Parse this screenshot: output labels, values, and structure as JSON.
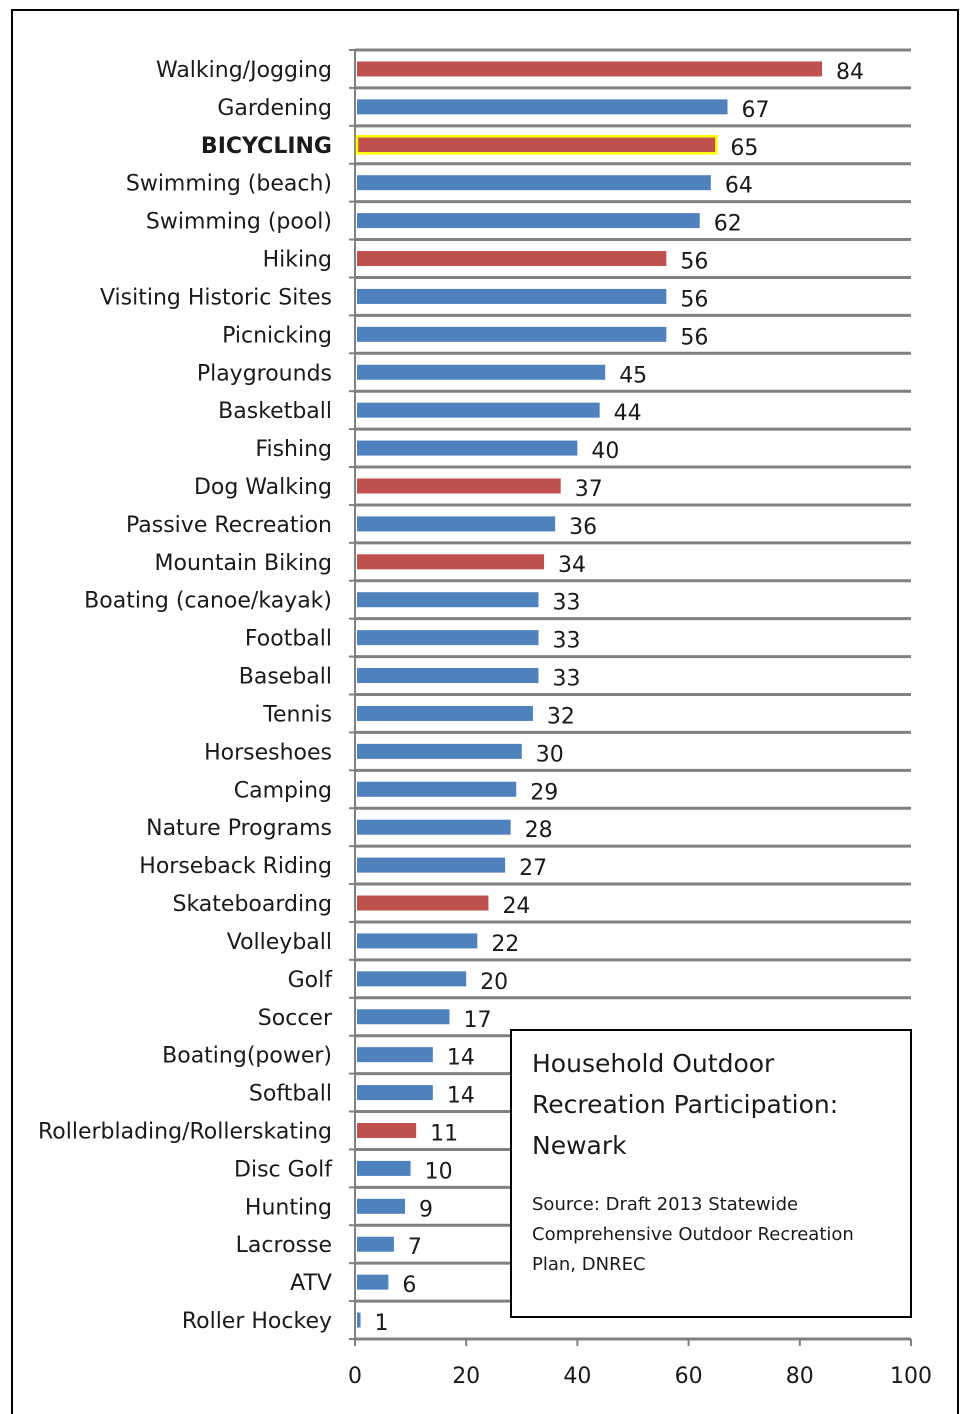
{
  "chart_data": {
    "type": "bar",
    "orientation": "horizontal",
    "title": "Household Outdoor Recreation Participation: Newark",
    "source": "Source: Draft 2013 Statewide Comprehensive Outdoor Recreation Plan, DNREC",
    "xlim": [
      0,
      100
    ],
    "xticks": [
      0,
      20,
      40,
      60,
      80,
      100
    ],
    "grid": "horizontal",
    "colors": {
      "blue": "#4f81bd",
      "red": "#c0504d",
      "highlight": "#ffff00",
      "grid": "#808080"
    },
    "categories": [
      {
        "label": "Walking/Jogging",
        "value": 84,
        "color": "red"
      },
      {
        "label": "Gardening",
        "value": 67,
        "color": "blue"
      },
      {
        "label": "BICYCLING",
        "value": 65,
        "color": "red",
        "highlight": true,
        "bold": true
      },
      {
        "label": "Swimming (beach)",
        "value": 64,
        "color": "blue"
      },
      {
        "label": "Swimming (pool)",
        "value": 62,
        "color": "blue"
      },
      {
        "label": "Hiking",
        "value": 56,
        "color": "red"
      },
      {
        "label": "Visiting Historic Sites",
        "value": 56,
        "color": "blue"
      },
      {
        "label": "Picnicking",
        "value": 56,
        "color": "blue"
      },
      {
        "label": "Playgrounds",
        "value": 45,
        "color": "blue"
      },
      {
        "label": "Basketball",
        "value": 44,
        "color": "blue"
      },
      {
        "label": "Fishing",
        "value": 40,
        "color": "blue"
      },
      {
        "label": "Dog Walking",
        "value": 37,
        "color": "red"
      },
      {
        "label": "Passive Recreation",
        "value": 36,
        "color": "blue"
      },
      {
        "label": "Mountain Biking",
        "value": 34,
        "color": "red"
      },
      {
        "label": "Boating (canoe/kayak)",
        "value": 33,
        "color": "blue"
      },
      {
        "label": "Football",
        "value": 33,
        "color": "blue"
      },
      {
        "label": "Baseball",
        "value": 33,
        "color": "blue"
      },
      {
        "label": "Tennis",
        "value": 32,
        "color": "blue"
      },
      {
        "label": "Horseshoes",
        "value": 30,
        "color": "blue"
      },
      {
        "label": "Camping",
        "value": 29,
        "color": "blue"
      },
      {
        "label": "Nature Programs",
        "value": 28,
        "color": "blue"
      },
      {
        "label": "Horseback Riding",
        "value": 27,
        "color": "blue"
      },
      {
        "label": "Skateboarding",
        "value": 24,
        "color": "red"
      },
      {
        "label": "Volleyball",
        "value": 22,
        "color": "blue"
      },
      {
        "label": "Golf",
        "value": 20,
        "color": "blue"
      },
      {
        "label": "Soccer",
        "value": 17,
        "color": "blue"
      },
      {
        "label": "Boating(power)",
        "value": 14,
        "color": "blue"
      },
      {
        "label": "Softball",
        "value": 14,
        "color": "blue"
      },
      {
        "label": "Rollerblading/Rollerskating",
        "value": 11,
        "color": "red"
      },
      {
        "label": "Disc Golf",
        "value": 10,
        "color": "blue"
      },
      {
        "label": "Hunting",
        "value": 9,
        "color": "blue"
      },
      {
        "label": "Lacrosse",
        "value": 7,
        "color": "blue"
      },
      {
        "label": "ATV",
        "value": 6,
        "color": "blue"
      },
      {
        "label": "Roller Hockey",
        "value": 1,
        "color": "blue"
      }
    ]
  }
}
